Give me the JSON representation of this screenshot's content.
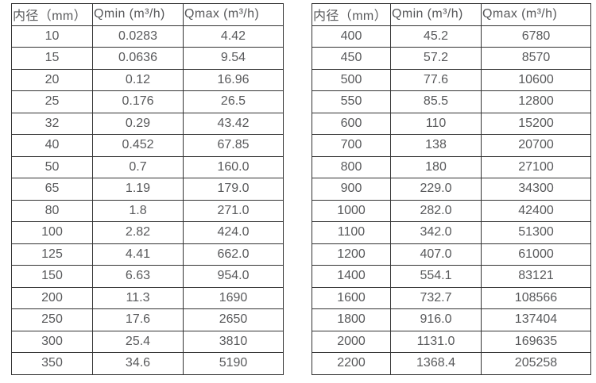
{
  "page": {
    "background": "#ffffff",
    "text_color": "#58595b",
    "border_color": "#333333"
  },
  "tables": [
    {
      "name": "flow-spec-table-small-diameters",
      "headers": [
        "内径（mm）",
        "Qmin (m³/h)",
        "Qmax (m³/h)"
      ],
      "rows": [
        [
          "10",
          "0.0283",
          "4.42"
        ],
        [
          "15",
          "0.0636",
          "9.54"
        ],
        [
          "20",
          "0.12",
          "16.96"
        ],
        [
          "25",
          "0.176",
          "26.5"
        ],
        [
          "32",
          "0.29",
          "43.42"
        ],
        [
          "40",
          "0.452",
          "67.85"
        ],
        [
          "50",
          "0.7",
          "160.0"
        ],
        [
          "65",
          "1.19",
          "179.0"
        ],
        [
          "80",
          "1.8",
          "271.0"
        ],
        [
          "100",
          "2.82",
          "424.0"
        ],
        [
          "125",
          "4.41",
          "662.0"
        ],
        [
          "150",
          "6.63",
          "954.0"
        ],
        [
          "200",
          "11.3",
          "1690"
        ],
        [
          "250",
          "17.6",
          "2650"
        ],
        [
          "300",
          "25.4",
          "3810"
        ],
        [
          "350",
          "34.6",
          "5190"
        ]
      ]
    },
    {
      "name": "flow-spec-table-large-diameters",
      "headers": [
        "内径（mm）",
        "Qmin (m³/h)",
        "Qmax (m³/h)"
      ],
      "rows": [
        [
          "400",
          "45.2",
          "6780"
        ],
        [
          "450",
          "57.2",
          "8570"
        ],
        [
          "500",
          "77.6",
          "10600"
        ],
        [
          "550",
          "85.5",
          "12800"
        ],
        [
          "600",
          "110",
          "15200"
        ],
        [
          "700",
          "138",
          "20700"
        ],
        [
          "800",
          "180",
          "27100"
        ],
        [
          "900",
          "229.0",
          "34300"
        ],
        [
          "1000",
          "282.0",
          "42400"
        ],
        [
          "1100",
          "342.0",
          "51300"
        ],
        [
          "1200",
          "407.0",
          "61000"
        ],
        [
          "1400",
          "554.1",
          "83121"
        ],
        [
          "1600",
          "732.7",
          "108566"
        ],
        [
          "1800",
          "916.0",
          "137404"
        ],
        [
          "2000",
          "1131.0",
          "169635"
        ],
        [
          "2200",
          "1368.4",
          "205258"
        ]
      ]
    }
  ]
}
